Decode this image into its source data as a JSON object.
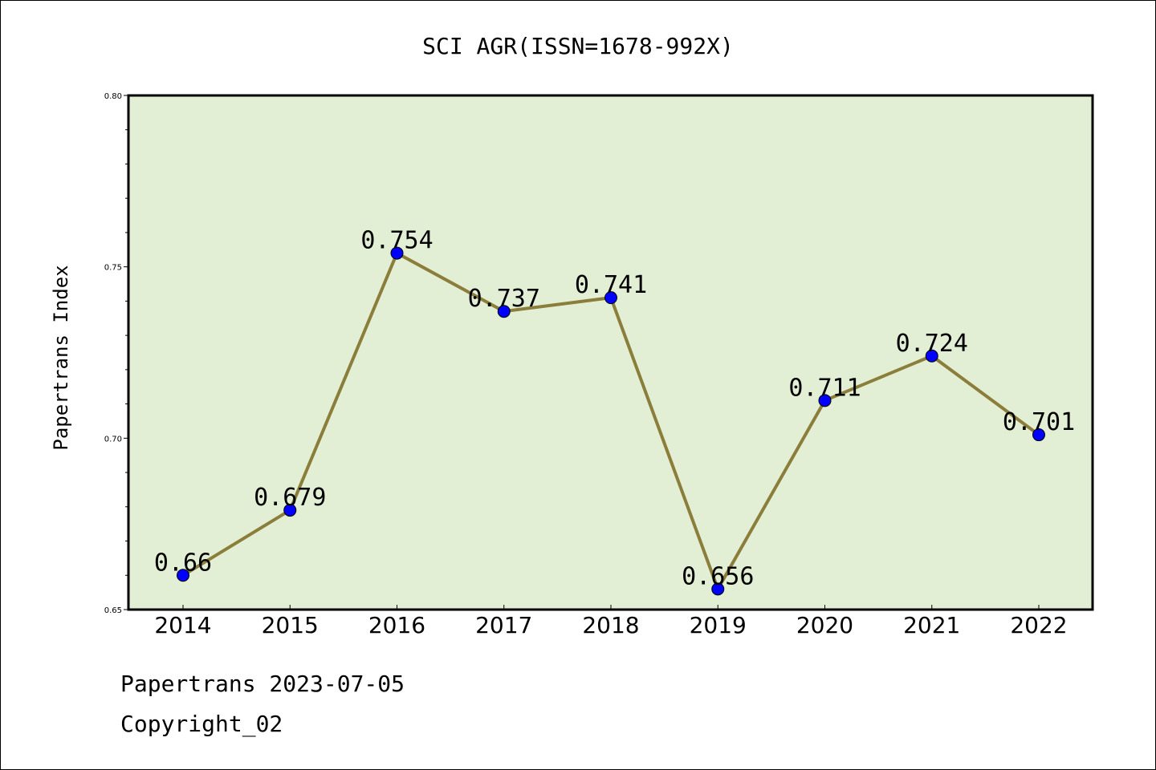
{
  "footer": {
    "line1": "Papertrans 2023-07-05",
    "line2": "Copyright_02"
  },
  "chart_data": {
    "type": "line",
    "title": "SCI AGR(ISSN=1678-992X)",
    "xlabel": "",
    "ylabel": "Papertrans Index",
    "categories": [
      "2014",
      "2015",
      "2016",
      "2017",
      "2018",
      "2019",
      "2020",
      "2021",
      "2022"
    ],
    "values": [
      0.66,
      0.679,
      0.754,
      0.737,
      0.741,
      0.656,
      0.711,
      0.724,
      0.701
    ],
    "data_labels": [
      "0.66",
      "0.679",
      "0.754",
      "0.737",
      "0.741",
      "0.656",
      "0.711",
      "0.724",
      "0.701"
    ],
    "ylim": [
      0.65,
      0.8
    ],
    "yticks": [
      0.65,
      0.7,
      0.75,
      0.8
    ],
    "ytick_labels": [
      "0.65",
      "0.70",
      "0.75",
      "0.80"
    ],
    "grid": false,
    "colors": {
      "plot_background": "#e2efd5",
      "line": "#8b7d3a",
      "marker": "#0000ff",
      "frame": "#000000"
    }
  }
}
